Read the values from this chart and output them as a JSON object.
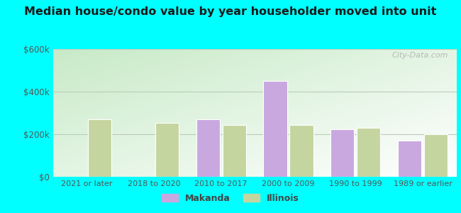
{
  "categories": [
    "2021 or later",
    "2018 to 2020",
    "2010 to 2017",
    "2000 to 2009",
    "1990 to 1999",
    "1989 or earlier"
  ],
  "makanda": [
    null,
    null,
    270000,
    450000,
    225000,
    170000
  ],
  "illinois": [
    270000,
    255000,
    245000,
    245000,
    230000,
    200000
  ],
  "makanda_color": "#c9a8e0",
  "illinois_color": "#c5d5a0",
  "title": "Median house/condo value by year householder moved into unit",
  "title_fontsize": 11.5,
  "ylim": [
    0,
    600000
  ],
  "yticks": [
    0,
    200000,
    400000,
    600000
  ],
  "ytick_labels": [
    "$0",
    "$200k",
    "$400k",
    "$600k"
  ],
  "legend_labels": [
    "Makanda",
    "Illinois"
  ],
  "outer_background": "#00ffff",
  "bar_width": 0.35,
  "grid_color": "#bbccbb",
  "watermark": "City-Data.com"
}
